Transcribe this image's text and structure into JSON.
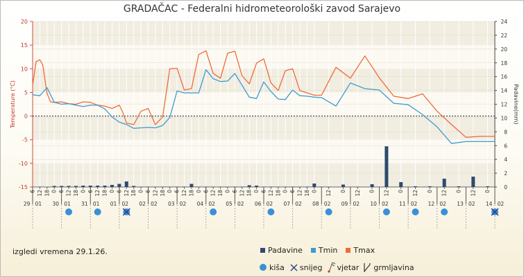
{
  "page": {
    "title": "GRADAČAC - Federalni hidrometeorološki zavod Sarajevo",
    "footer": "izgledi vremena 29.1.26."
  },
  "legend": {
    "row1": [
      {
        "label": "Padavine",
        "color": "#2e4a6e",
        "icon": "bar-square"
      },
      {
        "label": "Tmin",
        "color": "#3c9bd0",
        "icon": "line-square"
      },
      {
        "label": "Tmax",
        "color": "#ef6a3a",
        "icon": "line-square"
      }
    ],
    "row2": [
      {
        "label": "kiša",
        "color": "#3a8fd8",
        "icon": "rain-dot-icon"
      },
      {
        "label": "snijeg",
        "color": "#2b3f8a",
        "icon": "snow-cross-icon"
      },
      {
        "label": "vjetar",
        "color": "#555555",
        "icon": "wind-flag-icon"
      },
      {
        "label": "grmljavina",
        "color": "#333333",
        "icon": "lightning-icon"
      }
    ]
  },
  "chart_data": {
    "type": "line",
    "title": "GRADAČAC - Federalni hidrometeorološki zavod Sarajevo",
    "ylabel": "Temperature (°C)",
    "y2label": "Padavine(mm)",
    "ylim": [
      -15,
      20
    ],
    "y2lim": [
      0,
      24
    ],
    "yticks": [
      -15,
      -10,
      -5,
      0,
      5,
      10,
      15,
      20
    ],
    "y2ticks": [
      0,
      2,
      4,
      6,
      8,
      10,
      12,
      14,
      16,
      18,
      20,
      22,
      24
    ],
    "xlim": [
      0,
      16
    ],
    "grid": true,
    "legend_position": "bottom",
    "days": [
      "29 . 01",
      "30 . 01",
      "31 . 01",
      "01 . 02",
      "02 . 02",
      "03 . 02",
      "04 . 02",
      "05 . 02",
      "06 . 02",
      "07 . 02",
      "08 . 02",
      "09 . 02",
      "10 . 02",
      "11 . 02",
      "12 . 02",
      "13 . 02",
      "14 . 02"
    ],
    "hour_ticks": [
      {
        "x": 0.0,
        "label": "6"
      },
      {
        "x": 0.25,
        "label": "12"
      },
      {
        "x": 0.5,
        "label": "18"
      },
      {
        "x": 0.75,
        "label": "0"
      },
      {
        "x": 1.0,
        "label": "6"
      },
      {
        "x": 1.25,
        "label": "12"
      },
      {
        "x": 1.5,
        "label": "18"
      },
      {
        "x": 1.75,
        "label": "0"
      },
      {
        "x": 2.0,
        "label": "6"
      },
      {
        "x": 2.25,
        "label": "12"
      },
      {
        "x": 2.5,
        "label": "18"
      },
      {
        "x": 2.75,
        "label": "0"
      },
      {
        "x": 3.0,
        "label": "6"
      },
      {
        "x": 3.25,
        "label": "12"
      },
      {
        "x": 3.5,
        "label": "18"
      },
      {
        "x": 3.75,
        "label": "0"
      },
      {
        "x": 4.0,
        "label": "6"
      },
      {
        "x": 4.25,
        "label": "12"
      },
      {
        "x": 4.5,
        "label": "18"
      },
      {
        "x": 4.75,
        "label": "0"
      },
      {
        "x": 5.0,
        "label": "6"
      },
      {
        "x": 5.25,
        "label": "12"
      },
      {
        "x": 5.5,
        "label": "18"
      },
      {
        "x": 5.75,
        "label": "0"
      },
      {
        "x": 6.0,
        "label": "6"
      },
      {
        "x": 6.25,
        "label": "12"
      },
      {
        "x": 6.5,
        "label": "18"
      },
      {
        "x": 6.75,
        "label": "0"
      },
      {
        "x": 7.0,
        "label": "6"
      },
      {
        "x": 7.25,
        "label": "12"
      },
      {
        "x": 7.5,
        "label": "18"
      },
      {
        "x": 7.75,
        "label": "0"
      },
      {
        "x": 8.0,
        "label": "6"
      },
      {
        "x": 8.25,
        "label": "12"
      },
      {
        "x": 8.5,
        "label": "18"
      },
      {
        "x": 8.75,
        "label": "0"
      },
      {
        "x": 9.0,
        "label": "6"
      },
      {
        "x": 9.25,
        "label": "12"
      },
      {
        "x": 9.5,
        "label": "18"
      },
      {
        "x": 9.75,
        "label": "0"
      },
      {
        "x": 10.25,
        "label": "12"
      },
      {
        "x": 10.75,
        "label": "0"
      },
      {
        "x": 11.25,
        "label": "12"
      },
      {
        "x": 11.75,
        "label": "0"
      },
      {
        "x": 12.25,
        "label": "12"
      },
      {
        "x": 12.75,
        "label": "0"
      },
      {
        "x": 13.25,
        "label": "12"
      },
      {
        "x": 13.75,
        "label": "0"
      },
      {
        "x": 14.25,
        "label": "12"
      },
      {
        "x": 14.75,
        "label": "0"
      },
      {
        "x": 15.25,
        "label": "12"
      },
      {
        "x": 15.75,
        "label": "0"
      }
    ],
    "series": [
      {
        "name": "Tmax",
        "color": "#ef6a3a",
        "x": [
          0.0,
          0.12,
          0.25,
          0.35,
          0.5,
          0.62,
          0.75,
          1.0,
          1.25,
          1.5,
          1.75,
          2.0,
          2.25,
          2.5,
          2.75,
          3.0,
          3.12,
          3.25,
          3.5,
          3.75,
          4.0,
          4.25,
          4.5,
          4.75,
          5.0,
          5.25,
          5.5,
          5.75,
          6.0,
          6.25,
          6.5,
          6.75,
          7.0,
          7.25,
          7.5,
          7.75,
          8.0,
          8.25,
          8.5,
          8.75,
          9.0,
          9.25,
          9.5,
          9.75,
          10.0,
          10.5,
          11.0,
          11.5,
          12.0,
          12.5,
          13.0,
          13.5,
          14.0,
          14.5,
          15.0,
          15.5,
          16.0
        ],
        "values": [
          6.5,
          11.5,
          11.9,
          10.8,
          4.8,
          3.0,
          2.9,
          3.0,
          2.6,
          2.5,
          3.0,
          2.9,
          2.3,
          2.1,
          1.6,
          2.3,
          0.8,
          -1.5,
          -1.8,
          1.0,
          1.6,
          -1.8,
          -0.2,
          10.0,
          10.1,
          5.5,
          5.8,
          13.0,
          13.8,
          9.0,
          8.0,
          13.3,
          13.7,
          8.5,
          6.8,
          11.2,
          12.1,
          7.0,
          5.4,
          9.6,
          10.0,
          5.4,
          4.9,
          4.4,
          4.4,
          10.3,
          8.0,
          12.7,
          8.1,
          4.2,
          3.7,
          4.7,
          1.0,
          -1.8,
          -4.5,
          -4.3,
          -4.3
        ]
      },
      {
        "name": "Tmin",
        "color": "#3c9bd0",
        "x": [
          0.0,
          0.25,
          0.5,
          0.75,
          1.0,
          1.25,
          1.5,
          1.75,
          2.0,
          2.25,
          2.5,
          2.75,
          3.0,
          3.25,
          3.5,
          3.75,
          4.0,
          4.25,
          4.5,
          4.75,
          5.0,
          5.25,
          5.5,
          5.75,
          6.0,
          6.25,
          6.5,
          6.75,
          7.0,
          7.25,
          7.5,
          7.75,
          8.0,
          8.25,
          8.5,
          8.75,
          9.0,
          9.25,
          9.5,
          9.75,
          10.0,
          10.5,
          11.0,
          11.5,
          12.0,
          12.5,
          13.0,
          13.5,
          14.0,
          14.5,
          15.0,
          15.5,
          16.0
        ],
        "values": [
          4.5,
          4.3,
          6.0,
          2.9,
          2.5,
          2.6,
          2.3,
          2.0,
          2.3,
          2.3,
          1.5,
          -0.2,
          -1.3,
          -1.8,
          -2.6,
          -2.5,
          -2.4,
          -2.5,
          -2.0,
          -0.3,
          5.3,
          4.9,
          4.9,
          4.9,
          9.8,
          7.9,
          7.3,
          7.4,
          9.0,
          6.5,
          4.0,
          3.7,
          7.2,
          5.2,
          3.6,
          3.5,
          5.5,
          4.3,
          4.2,
          4.0,
          3.9,
          2.1,
          7.0,
          5.8,
          5.5,
          2.7,
          2.4,
          0.3,
          -2.3,
          -5.8,
          -5.4,
          -5.4,
          -5.4
        ]
      },
      {
        "name": "Padavine",
        "color": "#2e4a6e",
        "x": [
          0.25,
          0.75,
          1.0,
          1.25,
          1.5,
          1.75,
          2.0,
          2.25,
          2.5,
          2.75,
          3.0,
          3.25,
          3.5,
          3.75,
          4.0,
          4.25,
          4.5,
          4.75,
          5.0,
          5.25,
          5.5,
          5.75,
          6.0,
          6.25,
          6.5,
          6.75,
          7.0,
          7.25,
          7.5,
          7.75,
          8.0,
          8.25,
          8.5,
          8.75,
          9.0,
          9.25,
          9.5,
          9.75,
          10.0,
          10.25,
          10.75,
          11.25,
          11.75,
          12.25,
          12.75,
          13.25,
          13.75,
          14.25,
          14.75,
          15.25,
          15.75
        ],
        "values": [
          0.05,
          0.15,
          0.15,
          0.15,
          0.15,
          0.2,
          0.2,
          0.2,
          0.2,
          0.3,
          0.45,
          0.8,
          0.15,
          0.05,
          0.05,
          0.05,
          0.05,
          0.05,
          0.05,
          0.05,
          0.45,
          0.05,
          0.05,
          0.05,
          0.05,
          0.05,
          0.05,
          0.05,
          0.25,
          0.2,
          0.05,
          0.05,
          0.05,
          0.05,
          0.05,
          0.05,
          0.05,
          0.5,
          0.05,
          0.05,
          0.35,
          0.05,
          0.4,
          5.9,
          0.7,
          0.1,
          0.1,
          1.2,
          0.1,
          1.5,
          0.1
        ]
      }
    ],
    "weather_icons": [
      {
        "x": 1.25,
        "type": "kiša"
      },
      {
        "x": 2.25,
        "type": "kiša"
      },
      {
        "x": 3.25,
        "type": "kiša"
      },
      {
        "x": 3.25,
        "type": "snijeg"
      },
      {
        "x": 6.25,
        "type": "kiša"
      },
      {
        "x": 8.25,
        "type": "kiša"
      },
      {
        "x": 10.25,
        "type": "kiša"
      },
      {
        "x": 12.25,
        "type": "kiša"
      },
      {
        "x": 13.25,
        "type": "kiša"
      },
      {
        "x": 14.25,
        "type": "kiša"
      },
      {
        "x": 16.0,
        "type": "kiša"
      },
      {
        "x": 16.0,
        "type": "snijeg"
      }
    ]
  }
}
